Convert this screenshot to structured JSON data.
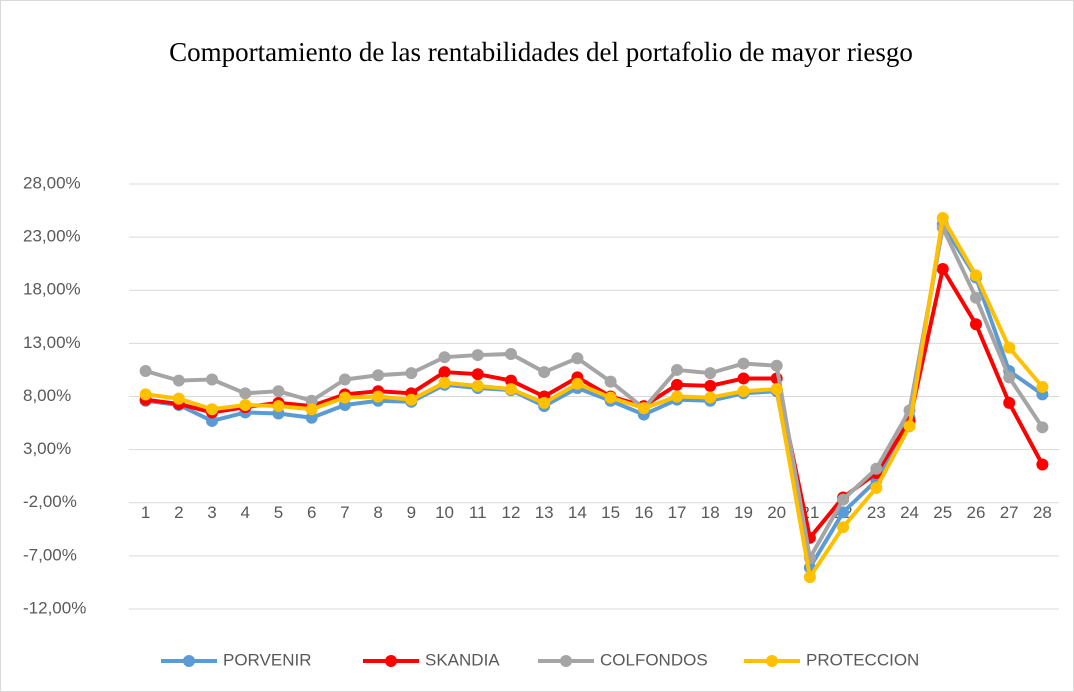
{
  "chart_data": {
    "type": "line",
    "title": "Comportamiento de las rentabilidades del portafolio de mayor riesgo",
    "categories": [
      "1",
      "2",
      "3",
      "4",
      "5",
      "6",
      "7",
      "8",
      "9",
      "10",
      "11",
      "12",
      "13",
      "14",
      "15",
      "16",
      "17",
      "18",
      "19",
      "20",
      "21",
      "22",
      "23",
      "24",
      "25",
      "26",
      "27",
      "28"
    ],
    "series": [
      {
        "name": "PORVENIR",
        "color": "#5b9bd5",
        "values": [
          7.6,
          7.2,
          5.7,
          6.5,
          6.4,
          6.0,
          7.2,
          7.6,
          7.5,
          9.1,
          8.8,
          8.6,
          7.1,
          8.8,
          7.6,
          6.3,
          7.7,
          7.6,
          8.3,
          8.5,
          -8.1,
          -2.9,
          0.1,
          6.0,
          24.2,
          19.2,
          10.4,
          8.2
        ]
      },
      {
        "name": "SKANDIA",
        "color": "#ff0000",
        "values": [
          7.7,
          7.3,
          6.5,
          7.0,
          7.4,
          7.1,
          8.2,
          8.5,
          8.3,
          10.3,
          10.1,
          9.5,
          8.0,
          9.8,
          8.0,
          7.1,
          9.1,
          9.0,
          9.7,
          9.7,
          -5.3,
          -1.5,
          0.8,
          5.7,
          20.0,
          14.8,
          7.4,
          1.6
        ]
      },
      {
        "name": "COLFONDOS",
        "color": "#a5a5a5",
        "values": [
          10.4,
          9.5,
          9.6,
          8.3,
          8.5,
          7.6,
          9.6,
          10.0,
          10.2,
          11.7,
          11.9,
          12.0,
          10.3,
          11.6,
          9.4,
          6.9,
          10.5,
          10.2,
          11.1,
          10.9,
          -7.2,
          -1.7,
          1.2,
          6.7,
          23.9,
          17.3,
          9.8,
          5.1
        ]
      },
      {
        "name": "PROTECCION",
        "color": "#ffc000",
        "values": [
          8.2,
          7.8,
          6.8,
          7.2,
          7.1,
          6.8,
          7.9,
          8.0,
          7.7,
          9.3,
          9.0,
          8.7,
          7.4,
          9.2,
          7.9,
          6.9,
          8.0,
          7.9,
          8.5,
          8.7,
          -9.0,
          -4.3,
          -0.6,
          5.2,
          24.8,
          19.4,
          12.6,
          8.9
        ]
      }
    ],
    "ylim": [
      -12,
      28
    ],
    "yticks": [
      {
        "value": -12,
        "label": "-12,00%"
      },
      {
        "value": -7,
        "label": "-7,00%"
      },
      {
        "value": -2,
        "label": "-2,00%"
      },
      {
        "value": 3,
        "label": "3,00%"
      },
      {
        "value": 8,
        "label": "8,00%"
      },
      {
        "value": 13,
        "label": "13,00%"
      },
      {
        "value": 18,
        "label": "18,00%"
      },
      {
        "value": 23,
        "label": "23,00%"
      },
      {
        "value": 28,
        "label": "28,00%"
      }
    ],
    "grid": true,
    "legend": "bottom"
  }
}
